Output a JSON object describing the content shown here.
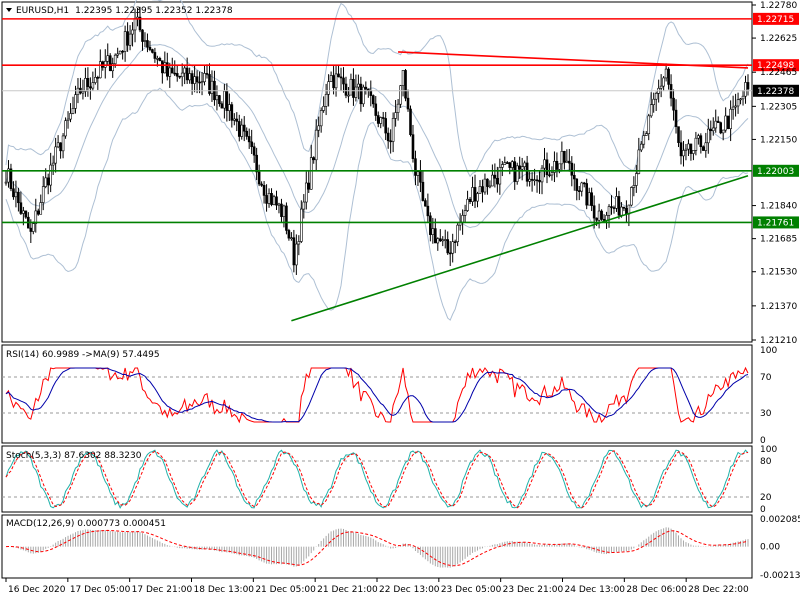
{
  "main": {
    "symbol": "EURUSD,H1",
    "ohlc": "1.22395 1.22395 1.22352 1.22378",
    "price_axis": [
      "1.22780",
      "1.22625",
      "1.22465",
      "1.22305",
      "1.22150",
      "1.21840",
      "1.21685",
      "1.21530",
      "1.21370",
      "1.21210"
    ],
    "price_range": [
      1.2121,
      1.2278
    ],
    "hlines": [
      {
        "value": 1.22715,
        "label": "1.22715",
        "color": "#ff0000"
      },
      {
        "value": 1.22498,
        "label": "1.22498",
        "color": "#ff0000"
      },
      {
        "value": 1.22003,
        "label": "1.22003",
        "color": "#008000"
      },
      {
        "value": 1.21761,
        "label": "1.21761",
        "color": "#008000"
      }
    ],
    "current": {
      "value": 1.22378,
      "label": "1.22378"
    },
    "trendlines": [
      {
        "color": "#ff0000",
        "from": {
          "bar": 158,
          "price": 1.2256
        },
        "to": {
          "bar": 300,
          "price": 1.22485
        }
      },
      {
        "color": "#008000",
        "from": {
          "bar": 115,
          "price": 1.213
        },
        "to": {
          "bar": 300,
          "price": 1.2198
        }
      }
    ],
    "candle_colors": {
      "outline": "#000000",
      "bull_fill": "#ffffff",
      "bear_fill": "#000000",
      "band": "#aec0d4",
      "grid": "#c8c8c8"
    }
  },
  "rsi": {
    "title": "RSI(14) 60.9989 ->MA(9) 57.4495",
    "levels": [
      "100",
      "70",
      "30",
      "0"
    ],
    "line_color": "#ff0000",
    "ma_color": "#0000aa"
  },
  "stoch": {
    "title": "Stoch(5,3,3) 87.6302 88.3230",
    "levels": [
      "100",
      "80",
      "20",
      "0"
    ],
    "main_color": "#20b2aa",
    "signal_color": "#ff0000"
  },
  "macd": {
    "title": "MACD(12,26,9) 0.000773 0.000451",
    "levels": [
      "0.002085",
      "0.00",
      "-0.002137"
    ],
    "hist_color": "#a8a8a8",
    "signal_color": "#ff0000"
  },
  "time_axis": [
    "16 Dec 2020",
    "17 Dec 05:00",
    "17 Dec 21:00",
    "18 Dec 13:00",
    "21 Dec 05:00",
    "21 Dec 21:00",
    "22 Dec 13:00",
    "23 Dec 05:00",
    "23 Dec 21:00",
    "24 Dec 13:00",
    "28 Dec 06:00",
    "28 Dec 22:00"
  ],
  "chart_data": {
    "type": "candlestick",
    "title": "EURUSD,H1",
    "ylim": [
      1.2121,
      1.2278
    ],
    "key_points": [
      {
        "bar": 0,
        "price": 1.22
      },
      {
        "bar": 10,
        "price": 1.217
      },
      {
        "bar": 16,
        "price": 1.2195
      },
      {
        "bar": 30,
        "price": 1.2238
      },
      {
        "bar": 45,
        "price": 1.2255
      },
      {
        "bar": 52,
        "price": 1.227
      },
      {
        "bar": 65,
        "price": 1.2245
      },
      {
        "bar": 80,
        "price": 1.2243
      },
      {
        "bar": 90,
        "price": 1.223
      },
      {
        "bar": 100,
        "price": 1.2205
      },
      {
        "bar": 105,
        "price": 1.219
      },
      {
        "bar": 112,
        "price": 1.218
      },
      {
        "bar": 116,
        "price": 1.216
      },
      {
        "bar": 130,
        "price": 1.2245
      },
      {
        "bar": 145,
        "price": 1.2235
      },
      {
        "bar": 155,
        "price": 1.2215
      },
      {
        "bar": 160,
        "price": 1.2245
      },
      {
        "bar": 165,
        "price": 1.22
      },
      {
        "bar": 170,
        "price": 1.2175
      },
      {
        "bar": 178,
        "price": 1.2162
      },
      {
        "bar": 188,
        "price": 1.219
      },
      {
        "bar": 200,
        "price": 1.22
      },
      {
        "bar": 215,
        "price": 1.22
      },
      {
        "bar": 225,
        "price": 1.2205
      },
      {
        "bar": 238,
        "price": 1.218
      },
      {
        "bar": 250,
        "price": 1.2185
      },
      {
        "bar": 262,
        "price": 1.2235
      },
      {
        "bar": 266,
        "price": 1.2248
      },
      {
        "bar": 272,
        "price": 1.2205
      },
      {
        "bar": 282,
        "price": 1.2215
      },
      {
        "bar": 292,
        "price": 1.2225
      },
      {
        "bar": 298,
        "price": 1.2238
      }
    ]
  }
}
